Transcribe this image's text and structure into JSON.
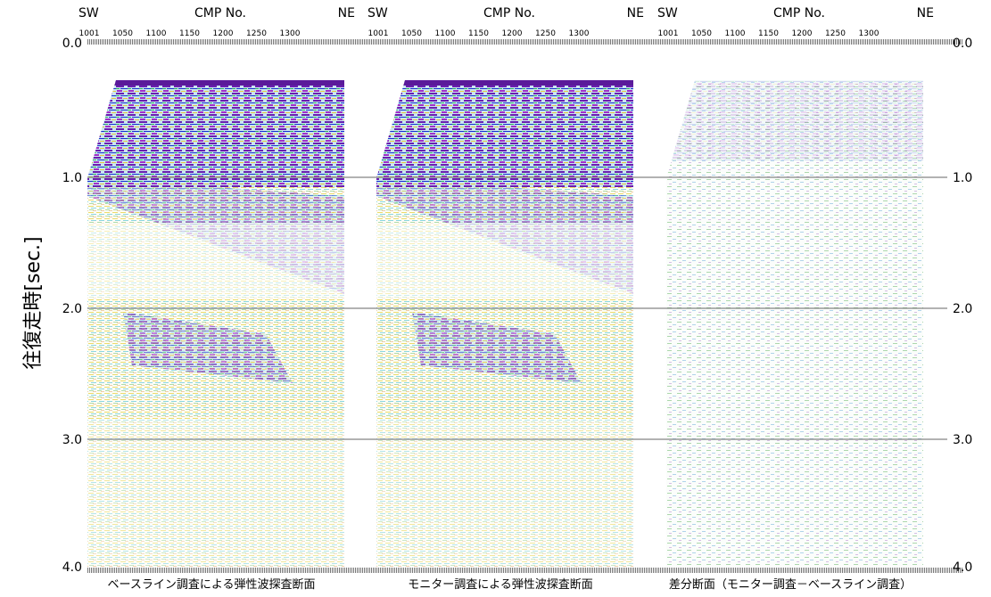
{
  "y_axis": {
    "label": "往復走時[sec.]",
    "ticks": [
      "0.0",
      "1.0",
      "2.0",
      "3.0",
      "4.0"
    ]
  },
  "panels": [
    {
      "left_label": "SW",
      "axis_title": "CMP No.",
      "right_label": "NE",
      "cmp_ticks": [
        1001,
        1050,
        1100,
        1150,
        1200,
        1250,
        1300
      ],
      "caption": "ベースライン調査による弾性波探査断面"
    },
    {
      "left_label": "SW",
      "axis_title": "CMP No.",
      "right_label": "NE",
      "cmp_ticks": [
        1001,
        1050,
        1100,
        1150,
        1200,
        1250,
        1300
      ],
      "caption": "モニター調査による弾性波探査断面"
    },
    {
      "left_label": "SW",
      "axis_title": "CMP No.",
      "right_label": "NE",
      "cmp_ticks": [
        1001,
        1050,
        1100,
        1150,
        1200,
        1250,
        1300
      ],
      "caption": "差分断面（モニター調査－ベースライン調査）"
    }
  ]
}
